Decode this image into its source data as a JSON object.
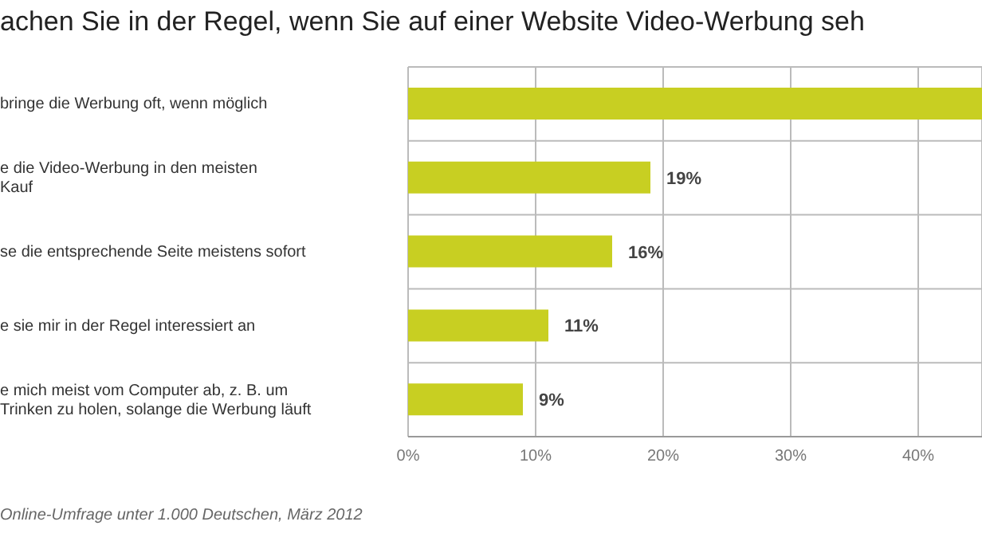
{
  "chart_data": {
    "type": "bar",
    "orientation": "horizontal",
    "title": "achen Sie in der Regel, wenn Sie auf einer Website Video-Werbung seh",
    "categories": [
      "bringe die Werbung oft, wenn möglich",
      "e die Video-Werbung in den meisten\nKauf",
      "se die entsprechende Seite meistens sofort",
      "e sie mir in der Regel interessiert an",
      "e mich meist vom Computer ab, z. B. um\nTrinken zu holen, solange die Werbung läuft"
    ],
    "values": [
      45,
      19,
      16,
      11,
      9
    ],
    "value_labels": [
      null,
      "19%",
      "16%",
      "11%",
      "9%"
    ],
    "color": "#c8cf22",
    "xlim": [
      0,
      45
    ],
    "xticks": [
      {
        "value": 0,
        "label": "0%"
      },
      {
        "value": 10,
        "label": "10%"
      },
      {
        "value": 20,
        "label": "20%"
      },
      {
        "value": 30,
        "label": "30%"
      },
      {
        "value": 40,
        "label": "40%"
      }
    ],
    "grid": true,
    "annotations": [
      "Online-Umfrage unter 1.000 Deutschen, März 2012"
    ]
  }
}
